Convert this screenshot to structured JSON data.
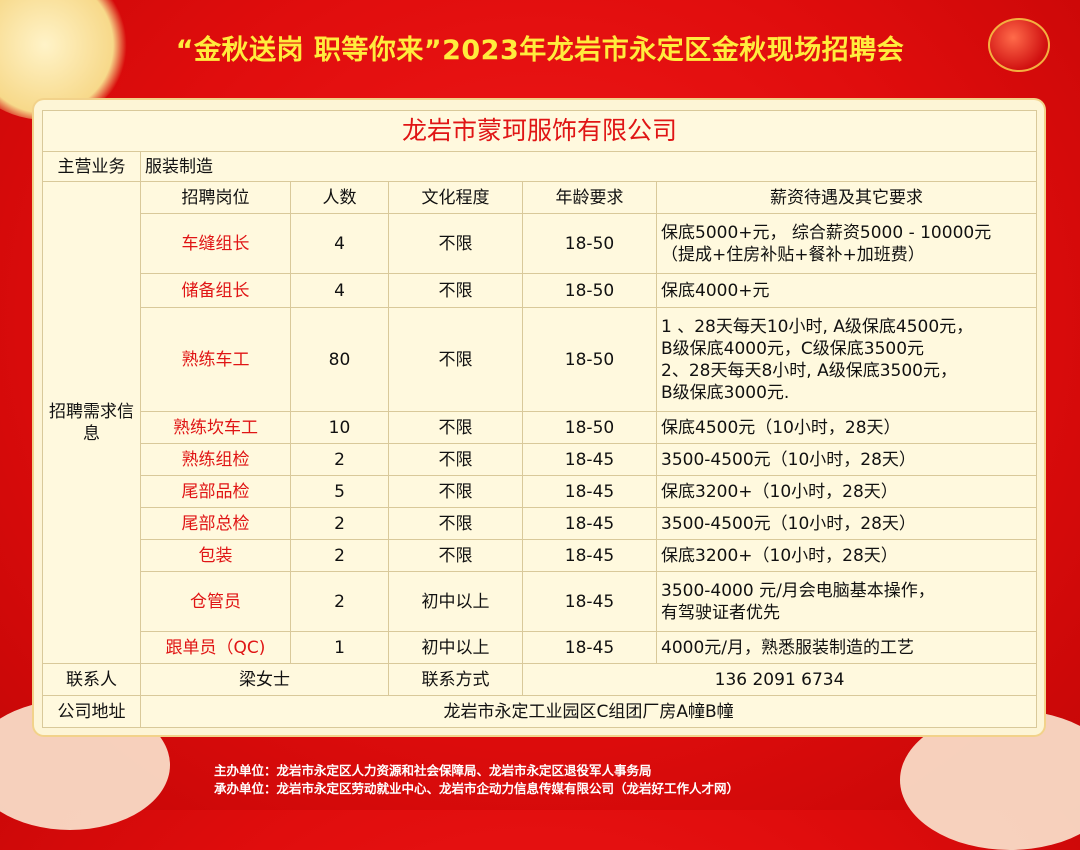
{
  "title": "“金秋送岗  职等你来”2023年龙岩市永定区金秋现场招聘会",
  "company": "龙岩市蒙珂服饰有限公司",
  "business_label": "主营业务",
  "business": "服装制造",
  "section_label": "招聘需求信息",
  "headers": [
    "招聘岗位",
    "人数",
    "文化程度",
    "年龄要求",
    "薪资待遇及其它要求"
  ],
  "jobs": [
    {
      "name": "车缝组长",
      "count": "4",
      "edu": "不限",
      "age": "18-50",
      "salary": [
        "保底5000+元， 综合薪资5000 - 10000元",
        "（提成+住房补贴+餐补+加班费）"
      ]
    },
    {
      "name": "储备组长",
      "count": "4",
      "edu": "不限",
      "age": "18-50",
      "salary": [
        "保底4000+元"
      ]
    },
    {
      "name": "熟练车工",
      "count": "80",
      "edu": "不限",
      "age": "18-50",
      "salary": [
        "1 、28天每天10小时, A级保底4500元，",
        "B级保底4000元，C级保底3500元",
        "2、28天每天8小时, A级保底3500元，",
        "B级保底3000元."
      ]
    },
    {
      "name": "熟练坎车工",
      "count": "10",
      "edu": "不限",
      "age": "18-50",
      "salary": [
        "保底4500元（10小时，28天）"
      ]
    },
    {
      "name": "熟练组检",
      "count": "2",
      "edu": "不限",
      "age": "18-45",
      "salary": [
        "3500-4500元（10小时，28天）"
      ]
    },
    {
      "name": "尾部品检",
      "count": "5",
      "edu": "不限",
      "age": "18-45",
      "salary": [
        "保底3200+（10小时，28天）"
      ]
    },
    {
      "name": "尾部总检",
      "count": "2",
      "edu": "不限",
      "age": "18-45",
      "salary": [
        "3500-4500元（10小时，28天）"
      ]
    },
    {
      "name": "包装",
      "count": "2",
      "edu": "不限",
      "age": "18-45",
      "salary": [
        "保底3200+（10小时，28天）"
      ]
    },
    {
      "name": "仓管员",
      "count": "2",
      "edu": "初中以上",
      "age": "18-45",
      "salary": [
        "3500-4000 元/月会电脑基本操作，",
        "有驾驶证者优先"
      ]
    },
    {
      "name": "跟单员（QC)",
      "count": "1",
      "edu": "初中以上",
      "age": "18-45",
      "salary": [
        "4000元/月，熟悉服装制造的工艺"
      ]
    }
  ],
  "contact_label": "联系人",
  "contact": "梁女士",
  "phone_label": "联系方式",
  "phone": "136 2091 6734",
  "address_label": "公司地址",
  "address": "龙岩市永定工业园区C组团厂房A幢B幢",
  "footer": [
    "主办单位：龙岩市永定区人力资源和社会保障局、龙岩市永定区退役军人事务局",
    "承办单位：龙岩市永定区劳动就业中心、龙岩市企动力信息传媒有限公司（龙岩好工作人才网）"
  ]
}
